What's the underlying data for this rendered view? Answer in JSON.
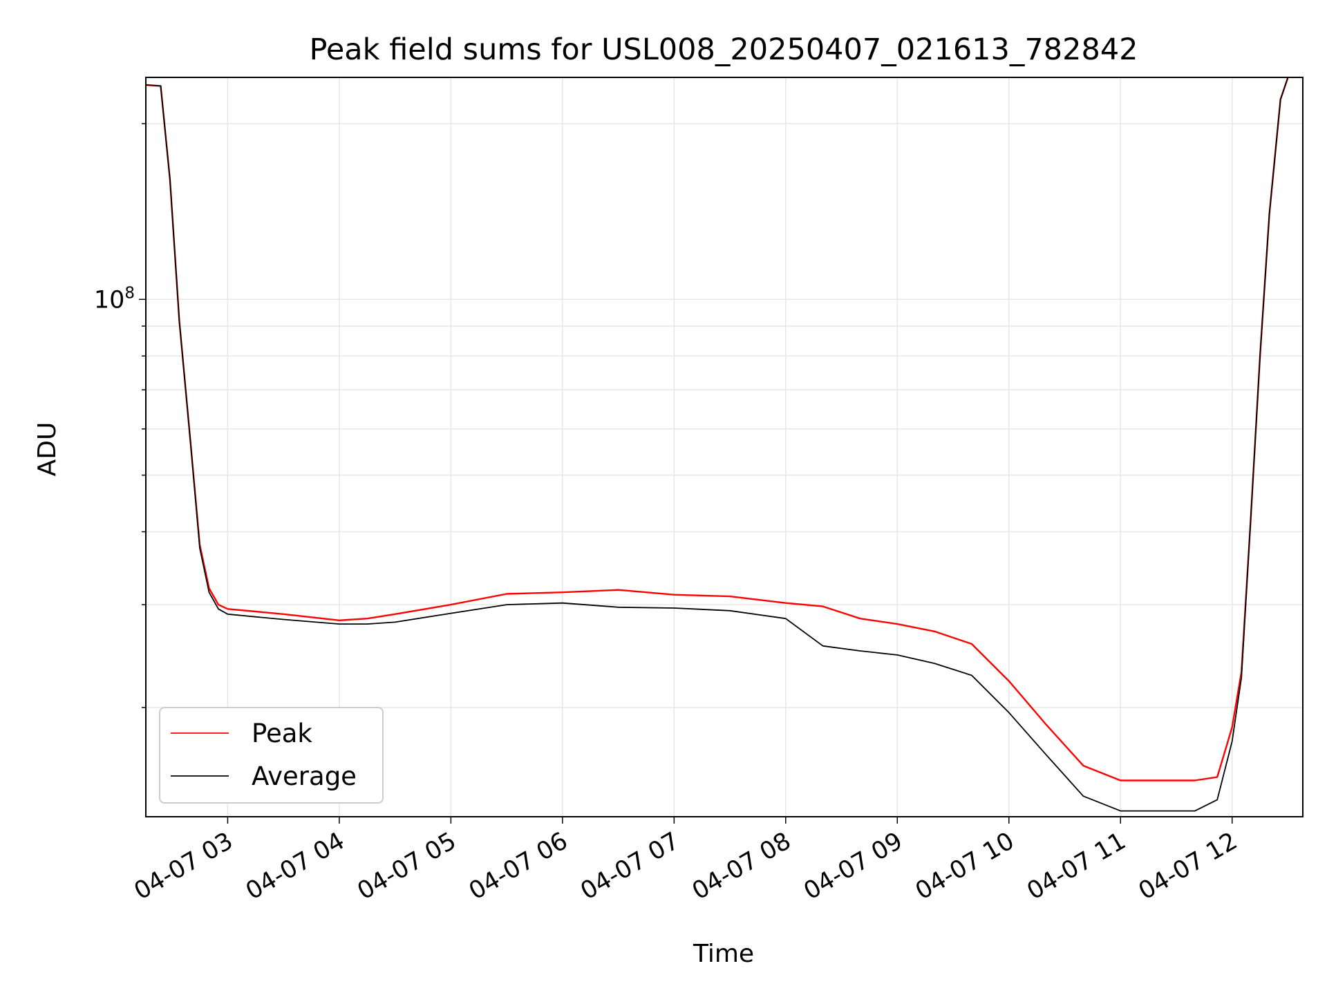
{
  "chart_data": {
    "type": "line",
    "title": "Peak field sums for USL008_20250407_021613_782842",
    "xlabel": "Time",
    "ylabel": "ADU",
    "yscale": "log",
    "ylim": [
      13000000,
      240000000
    ],
    "xlim": [
      "2025-04-07 02:16",
      "2025-04-07 12:38"
    ],
    "x_ticks": [
      "04-07 03",
      "04-07 04",
      "04-07 05",
      "04-07 06",
      "04-07 07",
      "04-07 08",
      "04-07 09",
      "04-07 10",
      "04-07 11",
      "04-07 12"
    ],
    "y_major_tick": {
      "base": "10",
      "exponent": "8",
      "value": 100000000
    },
    "grid": true,
    "legend": "lower-left",
    "series": [
      {
        "name": "Peak",
        "color": "#ff0000",
        "x": [
          "2025-04-07 02:16",
          "2025-04-07 02:24",
          "2025-04-07 02:29",
          "2025-04-07 02:34",
          "2025-04-07 02:40",
          "2025-04-07 02:45",
          "2025-04-07 02:50",
          "2025-04-07 02:55",
          "2025-04-07 03:00",
          "2025-04-07 03:15",
          "2025-04-07 03:30",
          "2025-04-07 04:00",
          "2025-04-07 04:15",
          "2025-04-07 04:30",
          "2025-04-07 05:00",
          "2025-04-07 05:30",
          "2025-04-07 06:00",
          "2025-04-07 06:30",
          "2025-04-07 07:00",
          "2025-04-07 07:30",
          "2025-04-07 08:00",
          "2025-04-07 08:20",
          "2025-04-07 08:40",
          "2025-04-07 09:00",
          "2025-04-07 09:20",
          "2025-04-07 09:40",
          "2025-04-07 10:00",
          "2025-04-07 10:20",
          "2025-04-07 10:40",
          "2025-04-07 11:00",
          "2025-04-07 11:20",
          "2025-04-07 11:40",
          "2025-04-07 11:52",
          "2025-04-07 12:00",
          "2025-04-07 12:05",
          "2025-04-07 12:10",
          "2025-04-07 12:15",
          "2025-04-07 12:20",
          "2025-04-07 12:26",
          "2025-04-07 12:30"
        ],
        "y": [
          233000000,
          232000000,
          160000000,
          92000000,
          57000000,
          38000000,
          32000000,
          30000000,
          29500000,
          29200000,
          28900000,
          28200000,
          28400000,
          28900000,
          30000000,
          31300000,
          31500000,
          31800000,
          31200000,
          31000000,
          30200000,
          29800000,
          28400000,
          27800000,
          27000000,
          25700000,
          22200000,
          18700000,
          15900000,
          15000000,
          15000000,
          15000000,
          15200000,
          18500000,
          23000000,
          42000000,
          80000000,
          140000000,
          220000000,
          240000000
        ]
      },
      {
        "name": "Average",
        "color": "#000000",
        "x": [
          "2025-04-07 02:16",
          "2025-04-07 02:24",
          "2025-04-07 02:29",
          "2025-04-07 02:34",
          "2025-04-07 02:40",
          "2025-04-07 02:45",
          "2025-04-07 02:50",
          "2025-04-07 02:55",
          "2025-04-07 03:00",
          "2025-04-07 03:15",
          "2025-04-07 03:30",
          "2025-04-07 04:00",
          "2025-04-07 04:15",
          "2025-04-07 04:30",
          "2025-04-07 05:00",
          "2025-04-07 05:30",
          "2025-04-07 06:00",
          "2025-04-07 06:30",
          "2025-04-07 07:00",
          "2025-04-07 07:30",
          "2025-04-07 08:00",
          "2025-04-07 08:20",
          "2025-04-07 08:40",
          "2025-04-07 09:00",
          "2025-04-07 09:20",
          "2025-04-07 09:40",
          "2025-04-07 10:00",
          "2025-04-07 10:20",
          "2025-04-07 10:40",
          "2025-04-07 11:00",
          "2025-04-07 11:20",
          "2025-04-07 11:40",
          "2025-04-07 11:52",
          "2025-04-07 12:00",
          "2025-04-07 12:05",
          "2025-04-07 12:10",
          "2025-04-07 12:15",
          "2025-04-07 12:20",
          "2025-04-07 12:26",
          "2025-04-07 12:30"
        ],
        "y": [
          233000000,
          232000000,
          160000000,
          92000000,
          57000000,
          37500000,
          31500000,
          29500000,
          28900000,
          28600000,
          28300000,
          27800000,
          27800000,
          28000000,
          29000000,
          30000000,
          30200000,
          29700000,
          29600000,
          29300000,
          28400000,
          25500000,
          25000000,
          24600000,
          23800000,
          22700000,
          19600000,
          16600000,
          14100000,
          13300000,
          13300000,
          13300000,
          13900000,
          17500000,
          22500000,
          42000000,
          80000000,
          140000000,
          220000000,
          240000000
        ]
      }
    ]
  }
}
